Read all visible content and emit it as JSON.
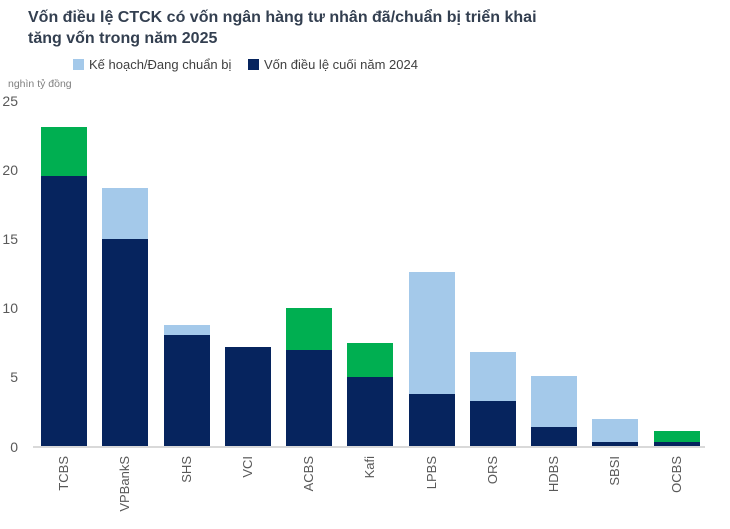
{
  "title_lines": [
    "Vốn điều lệ CTCK có vốn ngân hàng tư nhân đã/chuẩn bị triển khai",
    "tăng vốn trong năm 2025"
  ],
  "axis_unit_label": "nghìn tỷ đồng",
  "legend": {
    "items": [
      {
        "label": "Kế hoạch/Đang chuẩn bị",
        "color": "#A4C9EA"
      },
      {
        "label": "Vốn điều lệ cuối năm 2024",
        "color": "#06245E"
      }
    ]
  },
  "colors": {
    "navy": "#06245E",
    "light_blue": "#A4C9EA",
    "green": "#00AF51",
    "title_text": "#333F50",
    "legend_text": "#404040",
    "tick_text": "#595959",
    "unit_text": "#7F7F7F",
    "axis_line": "#D9D9D9",
    "background": "#FFFFFF"
  },
  "chart_data": {
    "type": "bar",
    "stacked": true,
    "title": "Vốn điều lệ CTCK có vốn ngân hàng tư nhân đã/chuẩn bị triển khai tăng vốn trong năm 2025",
    "ylabel": "nghìn tỷ đồng",
    "xlabel": "",
    "ylim": [
      0,
      25
    ],
    "yticks": [
      0,
      5,
      10,
      15,
      20,
      25
    ],
    "grid": false,
    "legend_position": "top",
    "categories": [
      "TCBS",
      "VPBankS",
      "SHS",
      "VCI",
      "ACBS",
      "Kafi",
      "LPBS",
      "ORS",
      "HDBS",
      "SBSI",
      "OCBS"
    ],
    "series": [
      {
        "id": "capital-2024",
        "name": "Vốn điều lệ cuối năm 2024",
        "color": "#06245E",
        "in_legend": true,
        "values": [
          19.6,
          15.0,
          8.1,
          7.2,
          7.0,
          5.0,
          3.8,
          3.3,
          1.4,
          0.3,
          0.3
        ]
      },
      {
        "id": "planned",
        "name": "Kế hoạch/Đang chuẩn bị",
        "color": "#A4C9EA",
        "in_legend": true,
        "values": [
          0,
          3.7,
          0.7,
          0,
          0,
          0,
          8.8,
          3.5,
          3.7,
          1.7,
          0
        ]
      },
      {
        "id": "green-unlabeled",
        "name": "",
        "color": "#00AF51",
        "in_legend": false,
        "values": [
          3.5,
          0,
          0,
          0,
          3.0,
          2.5,
          0,
          0,
          0,
          0,
          0.85
        ]
      }
    ]
  }
}
